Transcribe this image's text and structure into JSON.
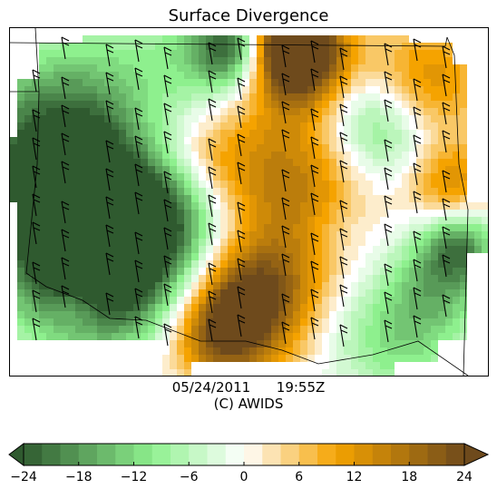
{
  "chart_data": {
    "type": "heatmap",
    "title": "Surface Divergence",
    "footer": {
      "date": "05/24/2011",
      "time": "19:55Z",
      "credit": "(C) AWIDS"
    },
    "colorbar": {
      "min": -24,
      "max": 24,
      "ticks": [
        -24,
        -18,
        -12,
        -6,
        0,
        6,
        12,
        18,
        24
      ],
      "tick_labels": [
        "−24",
        "−18",
        "−12",
        "−6",
        "0",
        "6",
        "12",
        "18",
        "24"
      ],
      "negative_color": "#2f5a2f",
      "mid_negative_color": "#8ef08e",
      "zero_color": "#ffffff",
      "mid_positive_color": "#f5a300",
      "positive_color": "#6e4a1c",
      "extend": "both"
    },
    "wind_barbs": "shown"
  }
}
